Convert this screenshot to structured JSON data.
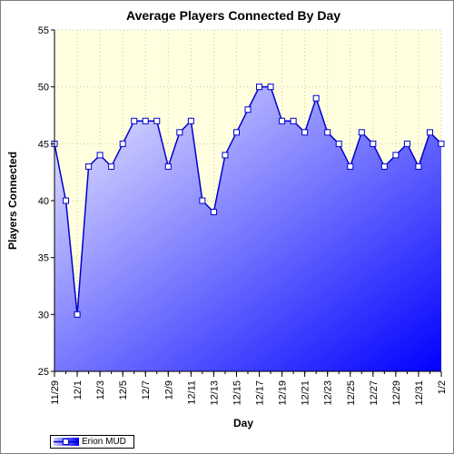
{
  "chart_data": {
    "type": "area",
    "title": "Average Players Connected By Day",
    "xlabel": "Day",
    "ylabel": "Players Connected",
    "ylim": [
      25,
      55
    ],
    "yticks": [
      25,
      30,
      35,
      40,
      45,
      50,
      55
    ],
    "grid": true,
    "legend_position": "bottom-left",
    "x": [
      "11/29",
      "11/30",
      "12/1",
      "12/2",
      "12/3",
      "12/4",
      "12/5",
      "12/6",
      "12/7",
      "12/8",
      "12/9",
      "12/10",
      "12/11",
      "12/12",
      "12/13",
      "12/14",
      "12/15",
      "12/16",
      "12/17",
      "12/18",
      "12/19",
      "12/20",
      "12/21",
      "12/22",
      "12/23",
      "12/24",
      "12/25",
      "12/26",
      "12/27",
      "12/28",
      "12/29",
      "12/30",
      "12/31",
      "1/1",
      "1/2"
    ],
    "xtick_labels": [
      "11/29",
      "12/1",
      "12/3",
      "12/5",
      "12/7",
      "12/9",
      "12/11",
      "12/13",
      "12/15",
      "12/17",
      "12/19",
      "12/21",
      "12/23",
      "12/25",
      "12/27",
      "12/29",
      "12/31",
      "1/2"
    ],
    "series": [
      {
        "name": "Erion MUD",
        "values": [
          45,
          40,
          30,
          43,
          44,
          43,
          45,
          47,
          47,
          47,
          43,
          46,
          47,
          40,
          39,
          44,
          46,
          48,
          50,
          50,
          47,
          47,
          46,
          49,
          46,
          45,
          43,
          46,
          45,
          43,
          44,
          45,
          43,
          46,
          45
        ]
      }
    ],
    "colors": {
      "line": "#0000cc",
      "area_top": "#f0f0ff",
      "area_bottom": "#0000ff",
      "plot_background": "#ffffe0",
      "marker_fill": "#ffffff",
      "grid": "#c8c8a0"
    }
  }
}
